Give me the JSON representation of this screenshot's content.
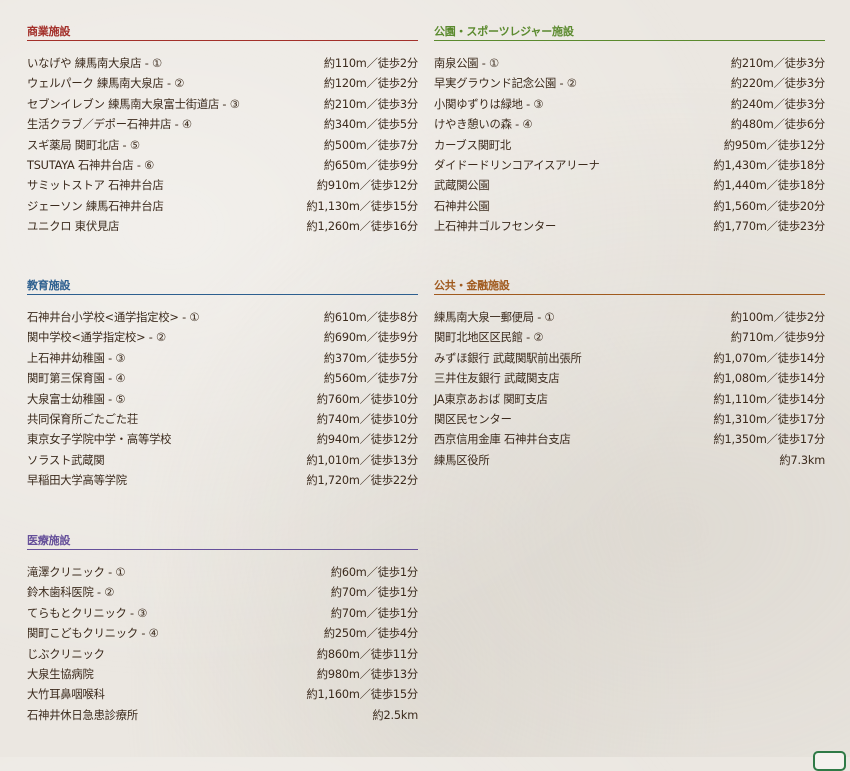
{
  "colors": {
    "text": "#3b2a1c",
    "commercial": "#a3302a",
    "parks": "#5b8a2e",
    "education": "#2d5f8f",
    "public": "#a05a1e",
    "medical": "#66509a"
  },
  "sections": [
    {
      "key": "commercial",
      "title": "商業施設",
      "items": [
        {
          "name": "いなげや 練馬南大泉店 - ①",
          "distance": "約110m／徒歩2分"
        },
        {
          "name": "ウェルパーク 練馬南大泉店 - ②",
          "distance": "約120m／徒歩2分"
        },
        {
          "name": "セブンイレブン 練馬南大泉富士街道店 - ③",
          "distance": "約210m／徒歩3分"
        },
        {
          "name": "生活クラブ／デポー石神井店 - ④",
          "distance": "約340m／徒歩5分"
        },
        {
          "name": "スギ薬局 関町北店 - ⑤",
          "distance": "約500m／徒歩7分"
        },
        {
          "name": "TSUTAYA 石神井台店 - ⑥",
          "distance": "約650m／徒歩9分"
        },
        {
          "name": "サミットストア 石神井台店",
          "distance": "約910m／徒歩12分"
        },
        {
          "name": "ジェーソン 練馬石神井台店",
          "distance": "約1,130m／徒歩15分"
        },
        {
          "name": "ユニクロ 東伏見店",
          "distance": "約1,260m／徒歩16分"
        }
      ]
    },
    {
      "key": "parks",
      "title": "公園・スポーツレジャー施設",
      "items": [
        {
          "name": "南泉公園 - ①",
          "distance": "約210m／徒歩3分"
        },
        {
          "name": "早実グラウンド記念公園 - ②",
          "distance": "約220m／徒歩3分"
        },
        {
          "name": "小関ゆずりは緑地 - ③",
          "distance": "約240m／徒歩3分"
        },
        {
          "name": "けやき憩いの森 - ④",
          "distance": "約480m／徒歩6分"
        },
        {
          "name": "カーブス関町北",
          "distance": "約950m／徒歩12分"
        },
        {
          "name": "ダイドードリンコアイスアリーナ",
          "distance": "約1,430m／徒歩18分"
        },
        {
          "name": "武蔵関公園",
          "distance": "約1,440m／徒歩18分"
        },
        {
          "name": "石神井公園",
          "distance": "約1,560m／徒歩20分"
        },
        {
          "name": "上石神井ゴルフセンター",
          "distance": "約1,770m／徒歩23分"
        }
      ]
    },
    {
      "key": "education",
      "title": "教育施設",
      "items": [
        {
          "name": "石神井台小学校<通学指定校> - ①",
          "distance": "約610m／徒歩8分"
        },
        {
          "name": "関中学校<通学指定校> - ②",
          "distance": "約690m／徒歩9分"
        },
        {
          "name": "上石神井幼稚園 - ③",
          "distance": "約370m／徒歩5分"
        },
        {
          "name": "関町第三保育園 - ④",
          "distance": "約560m／徒歩7分"
        },
        {
          "name": "大泉富士幼稚園 - ⑤",
          "distance": "約760m／徒歩10分"
        },
        {
          "name": "共同保育所ごたごた荘",
          "distance": "約740m／徒歩10分"
        },
        {
          "name": "東京女子学院中学・高等学校",
          "distance": "約940m／徒歩12分"
        },
        {
          "name": "ソラスト武蔵関",
          "distance": "約1,010m／徒歩13分"
        },
        {
          "name": "早稲田大学高等学院",
          "distance": "約1,720m／徒歩22分"
        }
      ]
    },
    {
      "key": "public",
      "title": "公共・金融施設",
      "items": [
        {
          "name": "練馬南大泉一郵便局 - ①",
          "distance": "約100m／徒歩2分"
        },
        {
          "name": "関町北地区区民館 - ②",
          "distance": "約710m／徒歩9分"
        },
        {
          "name": "みずほ銀行 武蔵関駅前出張所",
          "distance": "約1,070m／徒歩14分"
        },
        {
          "name": "三井住友銀行 武蔵関支店",
          "distance": "約1,080m／徒歩14分"
        },
        {
          "name": "JA東京あおば 関町支店",
          "distance": "約1,110m／徒歩14分"
        },
        {
          "name": "関区民センター",
          "distance": "約1,310m／徒歩17分"
        },
        {
          "name": "西京信用金庫 石神井台支店",
          "distance": "約1,350m／徒歩17分"
        },
        {
          "name": "練馬区役所",
          "distance": "約7.3km"
        }
      ]
    },
    {
      "key": "medical",
      "title": "医療施設",
      "items": [
        {
          "name": "滝澤クリニック - ①",
          "distance": "約60m／徒歩1分"
        },
        {
          "name": "鈴木歯科医院 - ②",
          "distance": "約70m／徒歩1分"
        },
        {
          "name": "てらもとクリニック - ③",
          "distance": "約70m／徒歩1分"
        },
        {
          "name": "関町こどもクリニック - ④",
          "distance": "約250m／徒歩4分"
        },
        {
          "name": "じぶクリニック",
          "distance": "約860m／徒歩11分"
        },
        {
          "name": "大泉生協病院",
          "distance": "約980m／徒歩13分"
        },
        {
          "name": "大竹耳鼻咽喉科",
          "distance": "約1,160m／徒歩15分"
        },
        {
          "name": "石神井休日急患診療所",
          "distance": "約2.5km"
        }
      ]
    }
  ]
}
